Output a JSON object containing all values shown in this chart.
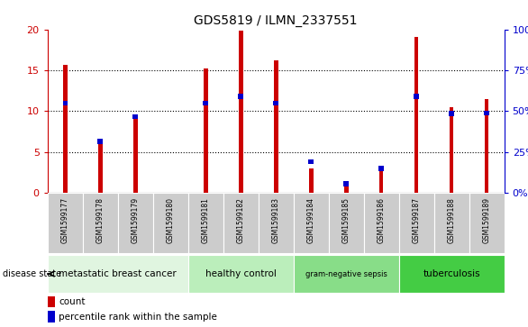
{
  "title": "GDS5819 / ILMN_2337551",
  "samples": [
    "GSM1599177",
    "GSM1599178",
    "GSM1599179",
    "GSM1599180",
    "GSM1599181",
    "GSM1599182",
    "GSM1599183",
    "GSM1599184",
    "GSM1599185",
    "GSM1599186",
    "GSM1599187",
    "GSM1599188",
    "GSM1599189"
  ],
  "counts": [
    15.7,
    6.1,
    9.5,
    0,
    15.2,
    19.8,
    16.2,
    3.0,
    1.1,
    2.7,
    19.1,
    10.5,
    11.5
  ],
  "percentiles_scaled": [
    11.0,
    6.3,
    9.3,
    0,
    11.0,
    11.8,
    11.0,
    3.8,
    1.1,
    3.0,
    11.8,
    9.7,
    9.8
  ],
  "count_color": "#cc0000",
  "percentile_color": "#0000cc",
  "bar_width": 0.12,
  "ylim_left": [
    0,
    20
  ],
  "ylim_right": [
    0,
    100
  ],
  "yticks_left": [
    0,
    5,
    10,
    15,
    20
  ],
  "yticks_right": [
    0,
    25,
    50,
    75,
    100
  ],
  "ytick_labels_right": [
    "0%",
    "25%",
    "50%",
    "75%",
    "100%"
  ],
  "groups": [
    {
      "label": "metastatic breast cancer",
      "start": 0,
      "end": 3,
      "color": "#e0f5e0"
    },
    {
      "label": "healthy control",
      "start": 4,
      "end": 6,
      "color": "#bbeebb"
    },
    {
      "label": "gram-negative sepsis",
      "start": 7,
      "end": 9,
      "color": "#88dd88"
    },
    {
      "label": "tuberculosis",
      "start": 10,
      "end": 12,
      "color": "#44cc44"
    }
  ],
  "background_color": "#ffffff",
  "tick_bg_color": "#cccccc",
  "grid_yticks": [
    5,
    10,
    15
  ],
  "disease_state_label": "disease state"
}
